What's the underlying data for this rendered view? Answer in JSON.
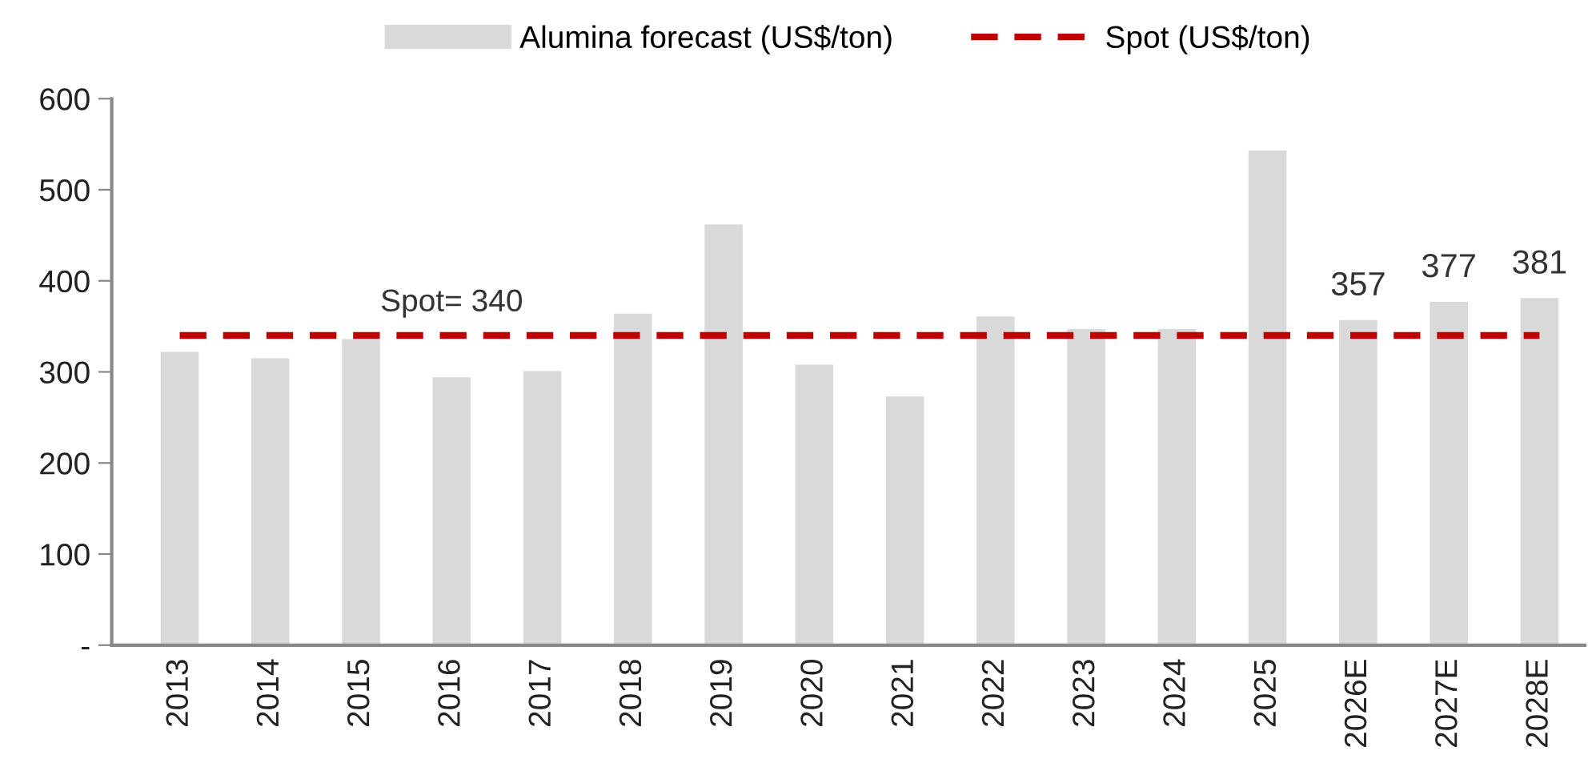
{
  "chart_data": {
    "type": "bar",
    "categories": [
      "2013",
      "2014",
      "2015",
      "2016",
      "2017",
      "2018",
      "2019",
      "2020",
      "2021",
      "2022",
      "2023",
      "2024",
      "2025",
      "2026E",
      "2027E",
      "2028E"
    ],
    "series": [
      {
        "name": "Alumina forecast (US$/ton)",
        "color": "#d9d9d9",
        "values": [
          322,
          315,
          336,
          294,
          301,
          364,
          462,
          308,
          273,
          361,
          347,
          347,
          543,
          357,
          377,
          381
        ],
        "value_labels": [
          null,
          null,
          null,
          null,
          null,
          null,
          null,
          null,
          null,
          null,
          null,
          null,
          null,
          "357",
          "377",
          "381"
        ]
      }
    ],
    "ref_lines": [
      {
        "axis": "y",
        "value": 340,
        "label": "Spot (US$/ton)",
        "color": "#c00000",
        "line_style": "dashed"
      }
    ],
    "annotations": [
      {
        "text": "Spot= 340",
        "x": "2016",
        "y": 340
      }
    ],
    "ylim": [
      0,
      600
    ],
    "yticks": [
      {
        "value": 0,
        "label": "-"
      },
      100,
      200,
      300,
      400,
      500,
      600
    ],
    "grid": false,
    "legend": "top"
  }
}
